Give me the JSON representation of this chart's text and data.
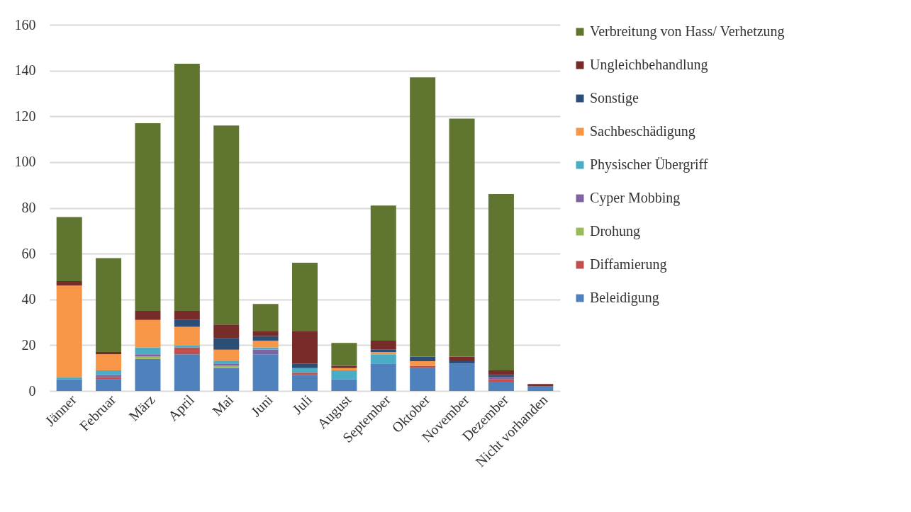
{
  "chart_data": {
    "type": "bar",
    "stacked": true,
    "categories": [
      "Jänner",
      "Februar",
      "März",
      "April",
      "Mai",
      "Juni",
      "Juli",
      "August",
      "September",
      "Oktober",
      "November",
      "Dezember",
      "Nicht vorhanden"
    ],
    "series": [
      {
        "name": "Beleidigung",
        "color": "#4f81bd",
        "values": [
          5,
          5,
          14,
          16,
          10,
          16,
          7,
          5,
          12,
          10,
          12,
          4,
          2
        ]
      },
      {
        "name": "Diffamierung",
        "color": "#c0504d",
        "values": [
          0,
          1,
          0,
          3,
          0,
          0,
          1,
          0,
          0,
          1,
          0,
          1,
          0
        ]
      },
      {
        "name": "Drohung",
        "color": "#9bbb59",
        "values": [
          0,
          0,
          1,
          0,
          1,
          0,
          0,
          0,
          0,
          0,
          0,
          0,
          0
        ]
      },
      {
        "name": "Cyper Mobbing",
        "color": "#8064a2",
        "values": [
          0,
          1,
          1,
          0,
          1,
          2,
          0,
          0,
          0,
          0,
          0,
          1,
          0
        ]
      },
      {
        "name": "Physischer Übergriff",
        "color": "#4bacc6",
        "values": [
          1,
          2,
          3,
          1,
          1,
          1,
          2,
          4,
          4,
          0,
          0,
          0,
          0
        ]
      },
      {
        "name": "Sachbeschädigung",
        "color": "#f79646",
        "values": [
          40,
          7,
          12,
          8,
          5,
          3,
          0,
          1,
          1,
          2,
          0,
          0,
          0
        ]
      },
      {
        "name": "Sonstige",
        "color": "#2c4d75",
        "values": [
          0,
          0,
          0,
          3,
          5,
          2,
          2,
          0,
          1,
          2,
          1,
          1,
          0
        ]
      },
      {
        "name": "Ungleichbehandlung",
        "color": "#772c2a",
        "values": [
          2,
          1,
          4,
          4,
          6,
          2,
          14,
          1,
          4,
          0,
          2,
          2,
          1
        ]
      },
      {
        "name": "Verbreitung von Hass/ Verhetzung",
        "color": "#5f7530",
        "values": [
          28,
          41,
          82,
          108,
          87,
          12,
          30,
          10,
          59,
          122,
          104,
          77,
          0
        ]
      }
    ],
    "ylim": [
      0,
      160
    ],
    "yticks": [
      0,
      20,
      40,
      60,
      80,
      100,
      120,
      140,
      160
    ],
    "grid": "y",
    "legend": "right"
  }
}
